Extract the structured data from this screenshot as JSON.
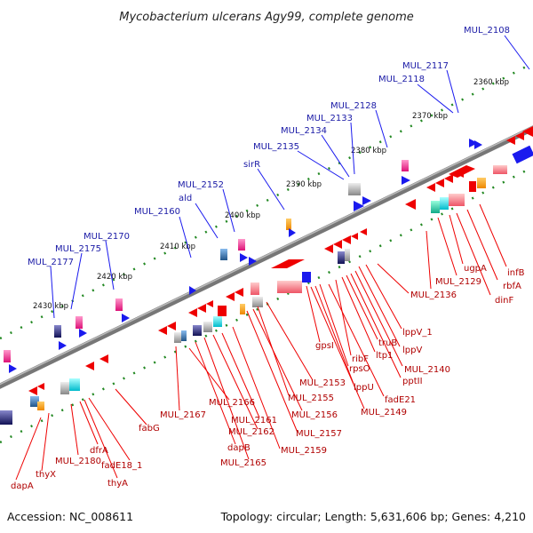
{
  "title": "Mycobacterium ulcerans Agy99, complete genome",
  "footer": {
    "accession": "Accession: NC_008611",
    "topology": "Topology: circular; Length: 5,631,606 bp; Genes: 4,210"
  },
  "scale_labels": [
    "2360 kbp",
    "2370 kbp",
    "2380 kbp",
    "2390 kbp",
    "2400 kbp",
    "2410 kbp",
    "2420 kbp",
    "2430 kbp"
  ],
  "blue_labels": [
    "MUL_2108",
    "MUL_2117",
    "MUL_2118",
    "MUL_2128",
    "MUL_2133",
    "MUL_2134",
    "MUL_2135",
    "sirR",
    "MUL_2152",
    "ald",
    "MUL_2160",
    "MUL_2170",
    "MUL_2175",
    "MUL_2177"
  ],
  "red_labels": [
    "infB",
    "rbfA",
    "ugpA",
    "dinF",
    "MUL_2129",
    "MUL_2136",
    "lppV_1",
    "lppV",
    "MUL_2140",
    "pptII",
    "truB",
    "ltp1",
    "ribF",
    "rpsO",
    "gpsI",
    "lppU",
    "fadE21",
    "MUL_2149",
    "MUL_2153",
    "MUL_2155",
    "MUL_2156",
    "MUL_2157",
    "MUL_2159",
    "MUL_2161",
    "MUL_2162",
    "MUL_2165",
    "dapB",
    "MUL_2166",
    "MUL_2167",
    "fabG",
    "fadE18_1",
    "thyA",
    "dfrA",
    "MUL_2180",
    "thyX",
    "dapA"
  ],
  "colors": {
    "label_blue": "#1a1aa6",
    "label_red": "#b00000",
    "feature_red": "#ee0000",
    "feature_blue": "#1a1aee",
    "backbone": "#777777",
    "tick_green": "#228822"
  }
}
